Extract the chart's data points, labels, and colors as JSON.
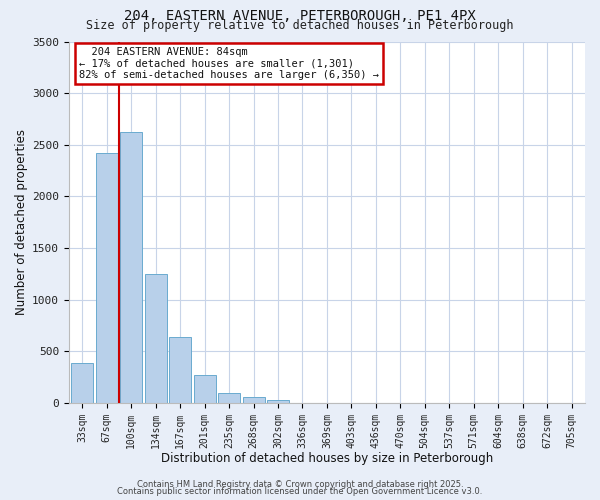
{
  "title": "204, EASTERN AVENUE, PETERBOROUGH, PE1 4PX",
  "subtitle": "Size of property relative to detached houses in Peterborough",
  "xlabel": "Distribution of detached houses by size in Peterborough",
  "ylabel": "Number of detached properties",
  "bar_labels": [
    "33sqm",
    "67sqm",
    "100sqm",
    "134sqm",
    "167sqm",
    "201sqm",
    "235sqm",
    "268sqm",
    "302sqm",
    "336sqm",
    "369sqm",
    "403sqm",
    "436sqm",
    "470sqm",
    "504sqm",
    "537sqm",
    "571sqm",
    "604sqm",
    "638sqm",
    "672sqm",
    "705sqm"
  ],
  "bar_values": [
    390,
    2420,
    2620,
    1250,
    640,
    270,
    100,
    55,
    30,
    0,
    0,
    0,
    0,
    0,
    0,
    0,
    0,
    0,
    0,
    0,
    0
  ],
  "bar_color": "#b8d0ea",
  "bar_edgecolor": "#6aabcf",
  "vline_x": 1.5,
  "vline_color": "#cc0000",
  "ylim": [
    0,
    3500
  ],
  "yticks": [
    0,
    500,
    1000,
    1500,
    2000,
    2500,
    3000,
    3500
  ],
  "annotation_title": "204 EASTERN AVENUE: 84sqm",
  "annotation_line2": "← 17% of detached houses are smaller (1,301)",
  "annotation_line3": "82% of semi-detached houses are larger (6,350) →",
  "annotation_box_edgecolor": "#cc0000",
  "footer1": "Contains HM Land Registry data © Crown copyright and database right 2025.",
  "footer2": "Contains public sector information licensed under the Open Government Licence v3.0.",
  "bg_color": "#e8eef8",
  "plot_bg_color": "#ffffff",
  "grid_color": "#c8d4e8"
}
